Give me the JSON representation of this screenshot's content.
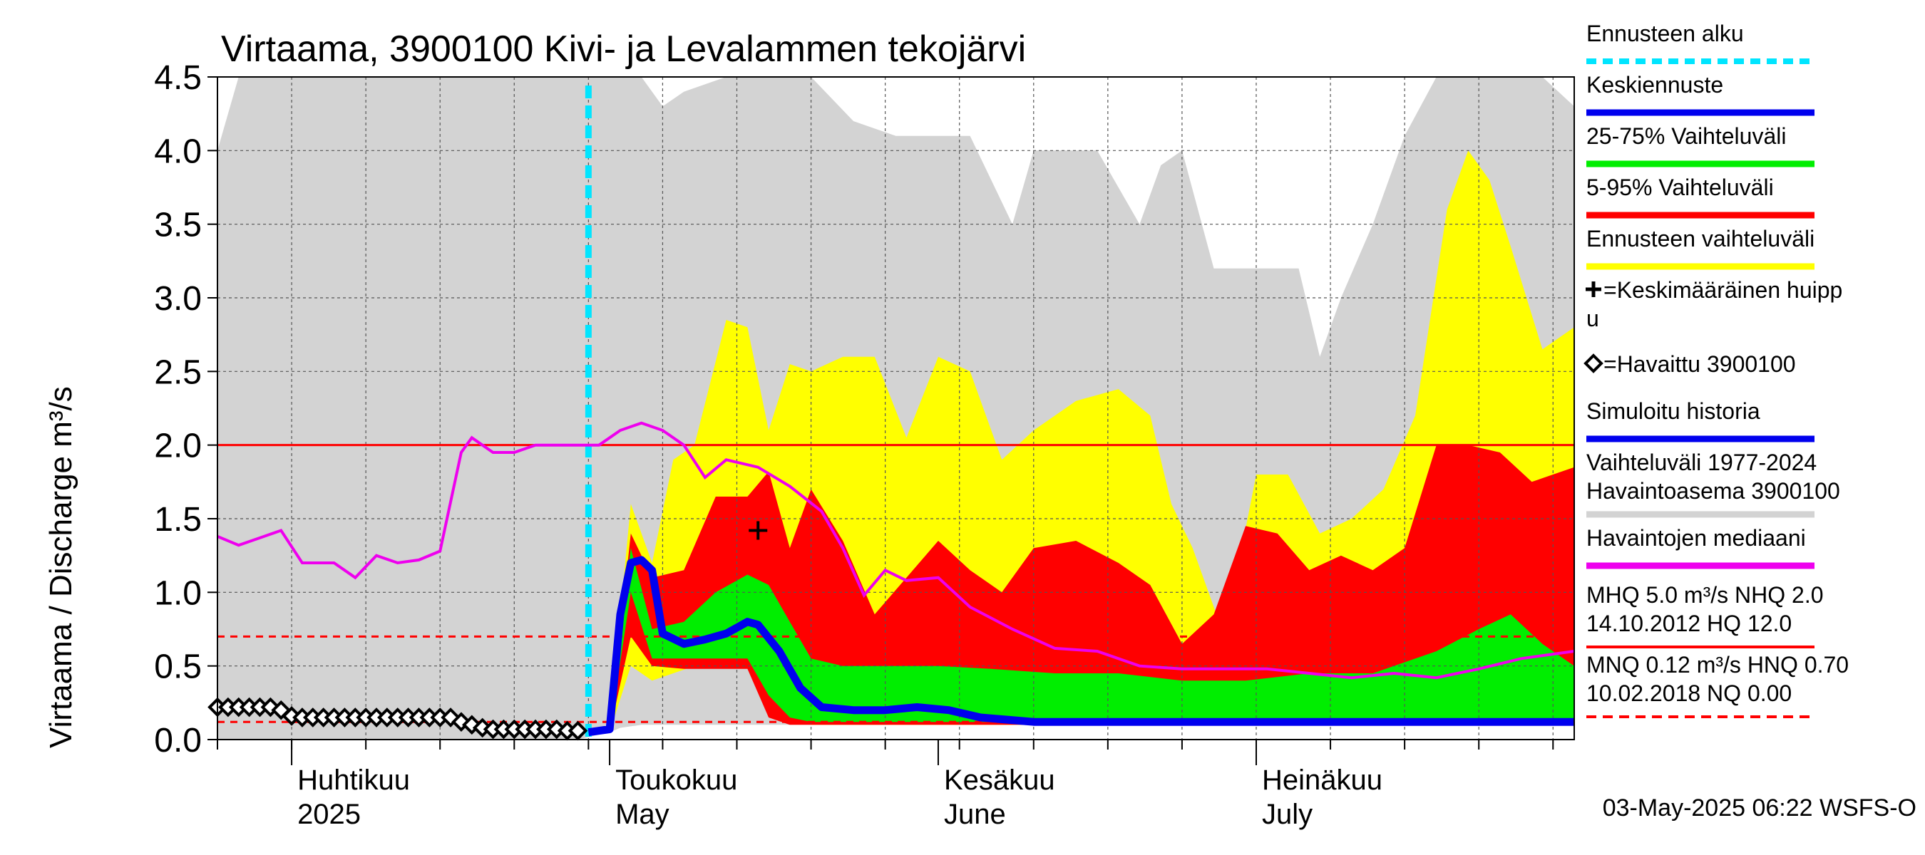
{
  "chart_data": {
    "type": "area",
    "title": "Virtaama, 3900100 Kivi- ja Levalammen tekojärvi",
    "ylabel": "Virtaama / Discharge   m³/s",
    "ylim": [
      0,
      4.5
    ],
    "yticks": [
      "0.0",
      "0.5",
      "1.0",
      "1.5",
      "2.0",
      "2.5",
      "3.0",
      "3.5",
      "4.0",
      "4.5"
    ],
    "xlim": [
      "2025-03-25",
      "2025-07-31"
    ],
    "month_ticks": [
      {
        "date": "2025-04-01",
        "fi": "Huhtikuu",
        "en": "2025"
      },
      {
        "date": "2025-05-01",
        "fi": "Toukokuu",
        "en": "May"
      },
      {
        "date": "2025-06-01",
        "fi": "Kesäkuu",
        "en": "June"
      },
      {
        "date": "2025-07-01",
        "fi": "Heinäkuu",
        "en": "July"
      }
    ],
    "forecast_start": "2025-04-29",
    "reference_lines": [
      {
        "name": "NHQ",
        "value": 2.0,
        "color": "#ff0000",
        "style": "solid"
      },
      {
        "name": "HNQ",
        "value": 0.7,
        "color": "#ff0000",
        "style": "dashed"
      },
      {
        "name": "MNQ",
        "value": 0.12,
        "color": "#ff0000",
        "style": "dashed"
      }
    ],
    "mean_peak": {
      "date": "2025-05-15",
      "value": 1.42
    },
    "colors": {
      "history_range": "#d3d3d3",
      "forecast_range": "#ffff00",
      "p5_95": "#ff0000",
      "p25_75": "#00ee00",
      "mean_forecast": "#0000ee",
      "median": "#ee00ee",
      "forecast_start": "#00e5ff"
    },
    "series": [
      {
        "name": "Vaihteluväli 1977-2024 Havaintoasema 3900100",
        "kind": "band",
        "x": [
          "2025-03-25",
          "2025-03-27",
          "2025-03-30",
          "2025-04-01",
          "2025-04-05",
          "2025-04-10",
          "2025-04-15",
          "2025-04-20",
          "2025-04-24",
          "2025-04-28",
          "2025-05-01",
          "2025-05-02",
          "2025-05-04",
          "2025-05-06",
          "2025-05-08",
          "2025-05-12",
          "2025-05-16",
          "2025-05-20",
          "2025-05-24",
          "2025-05-28",
          "2025-05-31",
          "2025-06-04",
          "2025-06-08",
          "2025-06-10",
          "2025-06-12",
          "2025-06-16",
          "2025-06-20",
          "2025-06-22",
          "2025-06-24",
          "2025-06-27",
          "2025-06-30",
          "2025-07-03",
          "2025-07-05",
          "2025-07-07",
          "2025-07-09",
          "2025-07-12",
          "2025-07-15",
          "2025-07-18",
          "2025-07-21",
          "2025-07-25",
          "2025-07-28",
          "2025-07-31"
        ],
        "low": [
          0.0,
          0.0,
          0.0,
          0.0,
          0.0,
          0.0,
          0.0,
          0.0,
          0.0,
          0.0,
          0.05,
          0.08,
          0.1,
          0.1,
          0.1,
          0.1,
          0.1,
          0.1,
          0.1,
          0.1,
          0.1,
          0.1,
          0.1,
          0.1,
          0.1,
          0.1,
          0.1,
          0.1,
          0.1,
          0.1,
          0.1,
          0.1,
          0.1,
          0.1,
          0.1,
          0.1,
          0.1,
          0.1,
          0.1,
          0.1,
          0.1,
          0.1
        ],
        "high": [
          4.0,
          4.5,
          4.5,
          4.5,
          4.5,
          4.5,
          4.5,
          4.5,
          4.5,
          4.5,
          4.5,
          4.5,
          4.5,
          4.3,
          4.4,
          4.5,
          4.5,
          4.5,
          4.2,
          4.1,
          4.1,
          4.1,
          3.5,
          4.0,
          4.0,
          4.0,
          3.5,
          3.9,
          4.0,
          3.2,
          3.2,
          3.2,
          3.2,
          2.6,
          3.0,
          3.5,
          4.1,
          4.5,
          4.5,
          4.5,
          4.5,
          4.3
        ]
      },
      {
        "name": "Ennusteen vaihteluväli",
        "kind": "band",
        "x": [
          "2025-04-29",
          "2025-05-01",
          "2025-05-03",
          "2025-05-05",
          "2025-05-07",
          "2025-05-09",
          "2025-05-12",
          "2025-05-14",
          "2025-05-16",
          "2025-05-18",
          "2025-05-20",
          "2025-05-23",
          "2025-05-26",
          "2025-05-29",
          "2025-06-01",
          "2025-06-04",
          "2025-06-07",
          "2025-06-10",
          "2025-06-14",
          "2025-06-18",
          "2025-06-21",
          "2025-06-23",
          "2025-06-25",
          "2025-06-28",
          "2025-07-01",
          "2025-07-04",
          "2025-07-07",
          "2025-07-10",
          "2025-07-13",
          "2025-07-16",
          "2025-07-19",
          "2025-07-21",
          "2025-07-23",
          "2025-07-25",
          "2025-07-28",
          "2025-07-31"
        ],
        "low": [
          0.05,
          0.05,
          0.5,
          0.4,
          0.45,
          0.5,
          0.5,
          0.5,
          0.5,
          0.15,
          0.1,
          0.1,
          0.1,
          0.1,
          0.1,
          0.1,
          0.1,
          0.1,
          0.1,
          0.1,
          0.1,
          0.1,
          0.1,
          0.1,
          0.1,
          0.1,
          0.1,
          0.1,
          0.1,
          0.1,
          0.1,
          0.1,
          0.1,
          0.1,
          0.1,
          0.1
        ],
        "high": [
          0.05,
          0.1,
          1.6,
          1.2,
          1.9,
          2.0,
          2.85,
          2.8,
          2.1,
          2.55,
          2.5,
          2.6,
          2.6,
          2.05,
          2.6,
          2.5,
          1.9,
          2.1,
          2.3,
          2.38,
          2.2,
          1.6,
          1.3,
          0.7,
          1.8,
          1.8,
          1.4,
          1.5,
          1.7,
          2.2,
          3.6,
          4.0,
          3.8,
          3.35,
          2.65,
          2.8
        ]
      },
      {
        "name": "5-95% Vaihteluväli",
        "kind": "band",
        "x": [
          "2025-04-29",
          "2025-05-01",
          "2025-05-03",
          "2025-05-05",
          "2025-05-08",
          "2025-05-11",
          "2025-05-14",
          "2025-05-16",
          "2025-05-18",
          "2025-05-20",
          "2025-05-23",
          "2025-05-26",
          "2025-05-29",
          "2025-06-01",
          "2025-06-04",
          "2025-06-07",
          "2025-06-10",
          "2025-06-14",
          "2025-06-18",
          "2025-06-21",
          "2025-06-24",
          "2025-06-27",
          "2025-06-30",
          "2025-07-03",
          "2025-07-06",
          "2025-07-09",
          "2025-07-12",
          "2025-07-15",
          "2025-07-18",
          "2025-07-21",
          "2025-07-24",
          "2025-07-27",
          "2025-07-31"
        ],
        "low": [
          0.05,
          0.05,
          0.7,
          0.5,
          0.48,
          0.48,
          0.48,
          0.15,
          0.1,
          0.1,
          0.1,
          0.1,
          0.1,
          0.1,
          0.1,
          0.1,
          0.1,
          0.1,
          0.1,
          0.1,
          0.1,
          0.1,
          0.1,
          0.1,
          0.1,
          0.1,
          0.1,
          0.1,
          0.1,
          0.1,
          0.1,
          0.1,
          0.1
        ],
        "high": [
          0.05,
          0.08,
          1.4,
          1.1,
          1.15,
          1.65,
          1.65,
          1.82,
          1.3,
          1.7,
          1.35,
          0.85,
          1.1,
          1.35,
          1.15,
          1.0,
          1.3,
          1.35,
          1.2,
          1.05,
          0.65,
          0.85,
          1.45,
          1.4,
          1.15,
          1.25,
          1.15,
          1.3,
          2.0,
          2.0,
          1.95,
          1.75,
          1.85
        ]
      },
      {
        "name": "25-75% Vaihteluväli",
        "kind": "band",
        "x": [
          "2025-04-29",
          "2025-05-01",
          "2025-05-03",
          "2025-05-05",
          "2025-05-08",
          "2025-05-11",
          "2025-05-14",
          "2025-05-16",
          "2025-05-18",
          "2025-05-20",
          "2025-05-23",
          "2025-05-26",
          "2025-05-29",
          "2025-06-01",
          "2025-06-06",
          "2025-06-12",
          "2025-06-18",
          "2025-06-24",
          "2025-06-30",
          "2025-07-06",
          "2025-07-12",
          "2025-07-18",
          "2025-07-22",
          "2025-07-25",
          "2025-07-28",
          "2025-07-31"
        ],
        "low": [
          0.05,
          0.05,
          1.0,
          0.55,
          0.55,
          0.55,
          0.55,
          0.3,
          0.15,
          0.12,
          0.12,
          0.12,
          0.12,
          0.12,
          0.12,
          0.12,
          0.12,
          0.12,
          0.12,
          0.12,
          0.12,
          0.12,
          0.12,
          0.12,
          0.12,
          0.12
        ],
        "high": [
          0.05,
          0.07,
          1.3,
          0.75,
          0.8,
          1.0,
          1.12,
          1.05,
          0.8,
          0.55,
          0.5,
          0.5,
          0.5,
          0.5,
          0.48,
          0.45,
          0.45,
          0.4,
          0.4,
          0.45,
          0.45,
          0.6,
          0.75,
          0.85,
          0.65,
          0.5
        ]
      },
      {
        "name": "Keskiennuste",
        "kind": "line",
        "x": [
          "2025-04-29",
          "2025-05-01",
          "2025-05-02",
          "2025-05-03",
          "2025-05-04",
          "2025-05-05",
          "2025-05-06",
          "2025-05-08",
          "2025-05-10",
          "2025-05-12",
          "2025-05-14",
          "2025-05-15",
          "2025-05-17",
          "2025-05-19",
          "2025-05-21",
          "2025-05-24",
          "2025-05-27",
          "2025-05-30",
          "2025-06-02",
          "2025-06-05",
          "2025-06-10",
          "2025-06-20",
          "2025-07-01",
          "2025-07-15",
          "2025-07-31"
        ],
        "y": [
          0.05,
          0.07,
          0.85,
          1.2,
          1.22,
          1.15,
          0.72,
          0.65,
          0.68,
          0.72,
          0.8,
          0.78,
          0.6,
          0.35,
          0.22,
          0.2,
          0.2,
          0.22,
          0.2,
          0.15,
          0.12,
          0.12,
          0.12,
          0.12,
          0.12
        ]
      },
      {
        "name": "Havaintojen mediaani",
        "kind": "line",
        "x": [
          "2025-03-25",
          "2025-03-27",
          "2025-03-29",
          "2025-03-31",
          "2025-04-02",
          "2025-04-05",
          "2025-04-07",
          "2025-04-09",
          "2025-04-11",
          "2025-04-13",
          "2025-04-15",
          "2025-04-17",
          "2025-04-18",
          "2025-04-20",
          "2025-04-22",
          "2025-04-24",
          "2025-04-26",
          "2025-04-28",
          "2025-04-30",
          "2025-05-02",
          "2025-05-04",
          "2025-05-06",
          "2025-05-08",
          "2025-05-10",
          "2025-05-12",
          "2025-05-15",
          "2025-05-18",
          "2025-05-21",
          "2025-05-23",
          "2025-05-25",
          "2025-05-27",
          "2025-05-29",
          "2025-06-01",
          "2025-06-04",
          "2025-06-08",
          "2025-06-12",
          "2025-06-16",
          "2025-06-20",
          "2025-06-24",
          "2025-06-28",
          "2025-07-02",
          "2025-07-06",
          "2025-07-10",
          "2025-07-14",
          "2025-07-18",
          "2025-07-22",
          "2025-07-26",
          "2025-07-31"
        ],
        "y": [
          1.38,
          1.32,
          1.37,
          1.42,
          1.2,
          1.2,
          1.1,
          1.25,
          1.2,
          1.22,
          1.28,
          1.95,
          2.05,
          1.95,
          1.95,
          2.0,
          2.0,
          2.0,
          2.0,
          2.1,
          2.15,
          2.1,
          2.0,
          1.78,
          1.9,
          1.85,
          1.72,
          1.55,
          1.3,
          0.98,
          1.15,
          1.08,
          1.1,
          0.9,
          0.75,
          0.62,
          0.6,
          0.5,
          0.48,
          0.48,
          0.48,
          0.45,
          0.42,
          0.45,
          0.42,
          0.48,
          0.55,
          0.6
        ]
      },
      {
        "name": "Havaittu 3900100",
        "kind": "scatter",
        "x": [
          "2025-03-25",
          "2025-03-26",
          "2025-03-27",
          "2025-03-28",
          "2025-03-29",
          "2025-03-30",
          "2025-03-31",
          "2025-04-01",
          "2025-04-02",
          "2025-04-03",
          "2025-04-04",
          "2025-04-05",
          "2025-04-06",
          "2025-04-07",
          "2025-04-08",
          "2025-04-09",
          "2025-04-10",
          "2025-04-11",
          "2025-04-12",
          "2025-04-13",
          "2025-04-14",
          "2025-04-15",
          "2025-04-16",
          "2025-04-17",
          "2025-04-18",
          "2025-04-19",
          "2025-04-20",
          "2025-04-21",
          "2025-04-22",
          "2025-04-23",
          "2025-04-24",
          "2025-04-25",
          "2025-04-26",
          "2025-04-27",
          "2025-04-28"
        ],
        "y": [
          0.22,
          0.22,
          0.22,
          0.22,
          0.22,
          0.22,
          0.2,
          0.16,
          0.15,
          0.15,
          0.15,
          0.15,
          0.15,
          0.15,
          0.15,
          0.15,
          0.15,
          0.15,
          0.15,
          0.15,
          0.15,
          0.15,
          0.15,
          0.12,
          0.1,
          0.08,
          0.07,
          0.07,
          0.07,
          0.07,
          0.07,
          0.07,
          0.07,
          0.06,
          0.06
        ]
      }
    ],
    "legend": [
      {
        "label": "Ennusteen alku",
        "swatch": "dashed",
        "color": "#00e5ff"
      },
      {
        "label": "Keskiennuste",
        "swatch": "line",
        "color": "#0000ee"
      },
      {
        "label": "25-75% Vaihteluväli",
        "swatch": "line",
        "color": "#00ee00"
      },
      {
        "label": "5-95% Vaihteluväli",
        "swatch": "line",
        "color": "#ff0000"
      },
      {
        "label": "Ennusteen vaihteluväli",
        "swatch": "line",
        "color": "#ffff00"
      },
      {
        "label": "=Keskimääräinen huipp",
        "label2": "u",
        "swatch": "plus",
        "color": "#000000"
      },
      {
        "label": "=Havaittu 3900100",
        "swatch": "diamond",
        "color": "#000000"
      },
      {
        "label": "Simuloitu historia",
        "swatch": "line",
        "color": "#0000ee"
      },
      {
        "label": "Vaihteluväli 1977-2024",
        "label2": " Havaintoasema 3900100",
        "swatch": "line",
        "color": "#d3d3d3"
      },
      {
        "label": "Havaintojen mediaani",
        "swatch": "line",
        "color": "#ee00ee"
      },
      {
        "label": "MHQ  5.0 m³/s NHQ  2.0",
        "label2": "14.10.2012 HQ 12.0",
        "swatch": "line",
        "color": "#ff0000"
      },
      {
        "label": "MNQ 0.12 m³/s HNQ 0.70",
        "label2": "10.02.2018 NQ 0.00",
        "swatch": "dashed",
        "color": "#ff0000"
      }
    ],
    "footer": "03-May-2025 06:22 WSFS-O"
  }
}
